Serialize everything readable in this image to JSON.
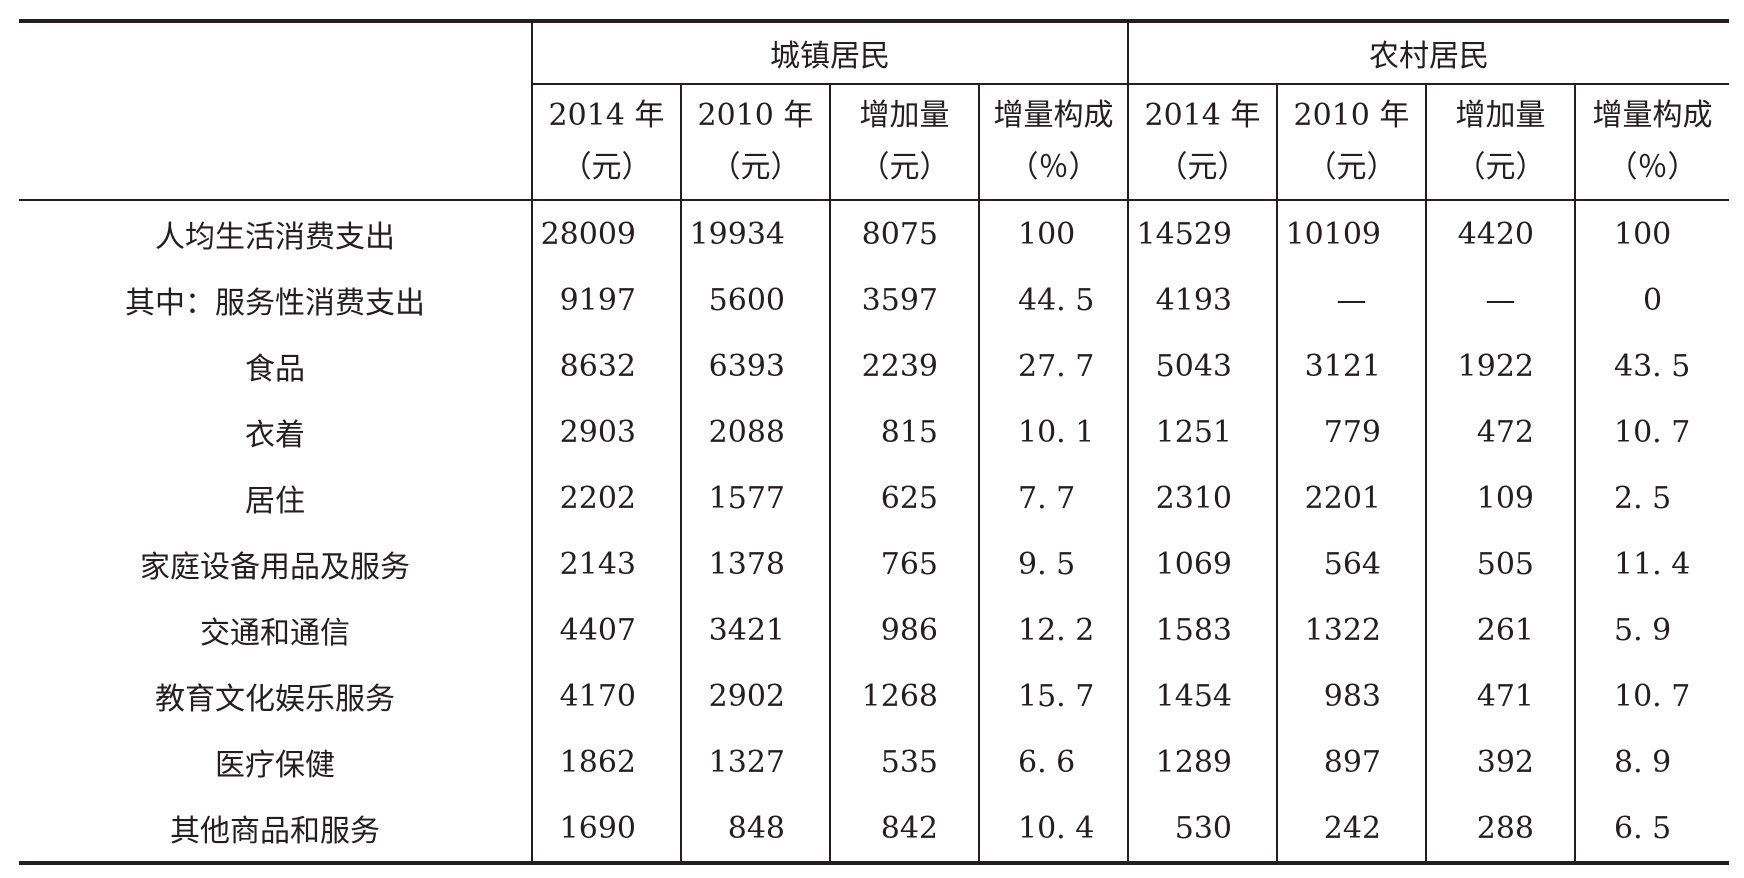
{
  "table": {
    "group_headers": [
      "城镇居民",
      "农村居民"
    ],
    "column_headers": [
      {
        "line1": "2014 年",
        "line2": "（元）"
      },
      {
        "line1": "2010 年",
        "line2": "（元）"
      },
      {
        "line1": "增加量",
        "line2": "（元）"
      },
      {
        "line1": "增量构成",
        "line2": "（％）"
      },
      {
        "line1": "2014 年",
        "line2": "（元）"
      },
      {
        "line1": "2010 年",
        "line2": "（元）"
      },
      {
        "line1": "增加量",
        "line2": "（元）"
      },
      {
        "line1": "增量构成",
        "line2": "（％）"
      }
    ],
    "rows": [
      {
        "label": "人均生活消费支出",
        "values": [
          "28009",
          "19934",
          "8075",
          "100",
          "14529",
          "10109",
          "4420",
          "100"
        ]
      },
      {
        "label": "其中：服务性消费支出",
        "values": [
          "9197",
          "5600",
          "3597",
          "44. 5",
          "4193",
          "—",
          "—",
          "0"
        ]
      },
      {
        "label": "食品",
        "values": [
          "8632",
          "6393",
          "2239",
          "27. 7",
          "5043",
          "3121",
          "1922",
          "43. 5"
        ]
      },
      {
        "label": "衣着",
        "values": [
          "2903",
          "2088",
          "815",
          "10. 1",
          "1251",
          "779",
          "472",
          "10. 7"
        ]
      },
      {
        "label": "居住",
        "values": [
          "2202",
          "1577",
          "625",
          "7. 7",
          "2310",
          "2201",
          "109",
          "2. 5"
        ]
      },
      {
        "label": "家庭设备用品及服务",
        "values": [
          "2143",
          "1378",
          "765",
          "9. 5",
          "1069",
          "564",
          "505",
          "11. 4"
        ]
      },
      {
        "label": "交通和通信",
        "values": [
          "4407",
          "3421",
          "986",
          "12. 2",
          "1583",
          "1322",
          "261",
          "5. 9"
        ]
      },
      {
        "label": "教育文化娱乐服务",
        "values": [
          "4170",
          "2902",
          "1268",
          "15. 7",
          "1454",
          "983",
          "471",
          "10. 7"
        ]
      },
      {
        "label": "医疗保健",
        "values": [
          "1862",
          "1327",
          "535",
          "6. 6",
          "1289",
          "897",
          "392",
          "8. 9"
        ]
      },
      {
        "label": "其他商品和服务",
        "values": [
          "1690",
          "848",
          "842",
          "10. 4",
          "530",
          "242",
          "288",
          "6. 5"
        ]
      }
    ]
  }
}
